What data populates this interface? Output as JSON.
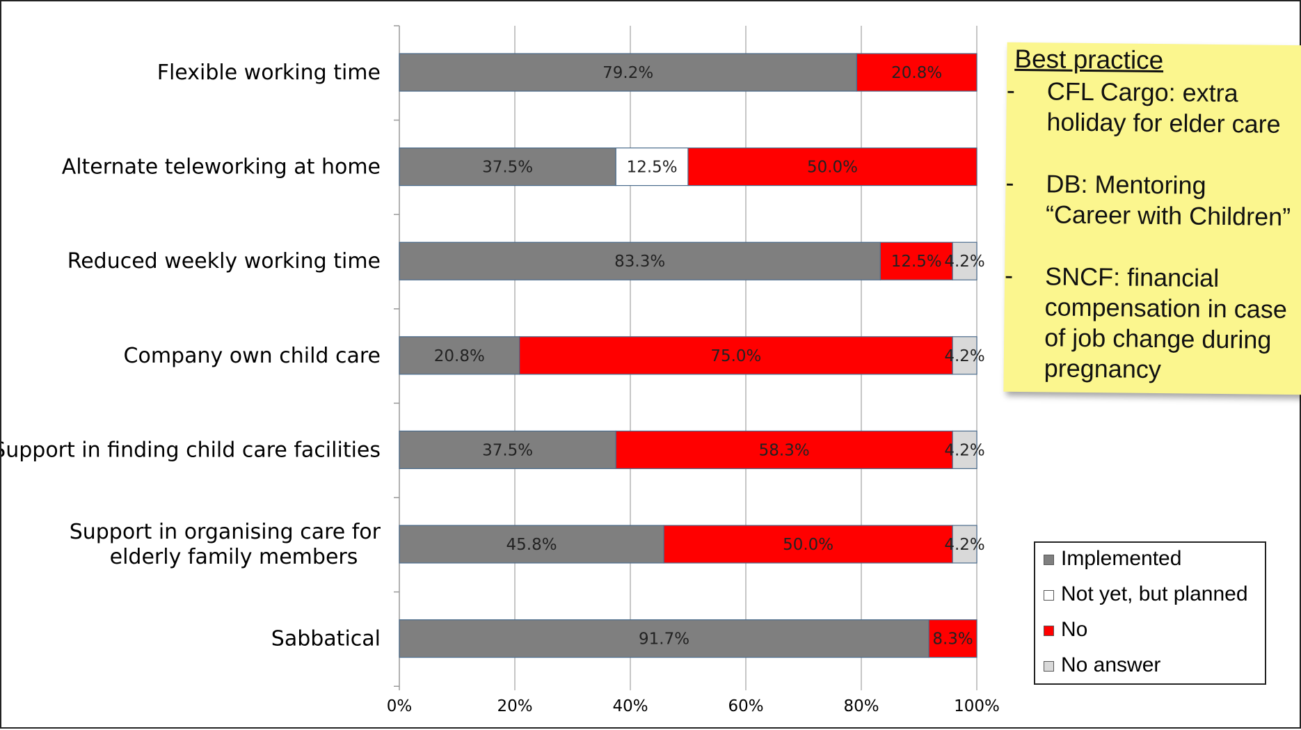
{
  "colors": {
    "implemented": "#7f7f7f",
    "planned": "#ffffff",
    "no": "#ff0000",
    "no_answer": "#d9d9d9",
    "note_background": "#fbf68e"
  },
  "chart_data": {
    "type": "bar",
    "orientation": "horizontal",
    "stacked": true,
    "percent_stacked": true,
    "categories": [
      "Flexible working time",
      "Alternate teleworking at home",
      "Reduced weekly working time",
      "Company own child care",
      "Support in finding child care facilities",
      "Support in organising care for elderly family members",
      "Sabbatical"
    ],
    "category_lines": [
      [
        "Flexible working time"
      ],
      [
        "Alternate teleworking at home"
      ],
      [
        "Reduced weekly working time"
      ],
      [
        "Company own child care"
      ],
      [
        "Support in finding child care facilities"
      ],
      [
        "Support in organising care for",
        "elderly family members"
      ],
      [
        "Sabbatical"
      ]
    ],
    "series": [
      {
        "name": "Implemented",
        "color": "#7f7f7f",
        "values": [
          79.2,
          37.5,
          83.3,
          20.8,
          37.5,
          45.8,
          91.7
        ]
      },
      {
        "name": "Not yet, but planned",
        "color": "#ffffff",
        "values": [
          0,
          12.5,
          0,
          0,
          0,
          0,
          0
        ]
      },
      {
        "name": "No",
        "color": "#ff0000",
        "values": [
          20.8,
          50.0,
          12.5,
          75.0,
          58.3,
          50.0,
          8.3
        ]
      },
      {
        "name": "No answer",
        "color": "#d9d9d9",
        "values": [
          0,
          0,
          4.2,
          4.2,
          4.2,
          4.2,
          0
        ]
      }
    ],
    "x_ticks": [
      "0%",
      "20%",
      "40%",
      "60%",
      "80%",
      "100%"
    ],
    "xlim": [
      0,
      100
    ],
    "title": "",
    "xlabel": "",
    "ylabel": "",
    "grid": true,
    "legend": "bottom-right"
  },
  "note": {
    "title": "Best practice",
    "items": [
      {
        "dash": "-",
        "lines": [
          "CFL Cargo: extra",
          "holiday for elder care"
        ]
      },
      {
        "dash": "-",
        "lines": [
          "DB: Mentoring",
          "“Career with Children”"
        ]
      },
      {
        "dash": "-",
        "lines": [
          "SNCF:  financial",
          "compensation in case",
          "of job change during",
          "pregnancy"
        ]
      }
    ]
  }
}
